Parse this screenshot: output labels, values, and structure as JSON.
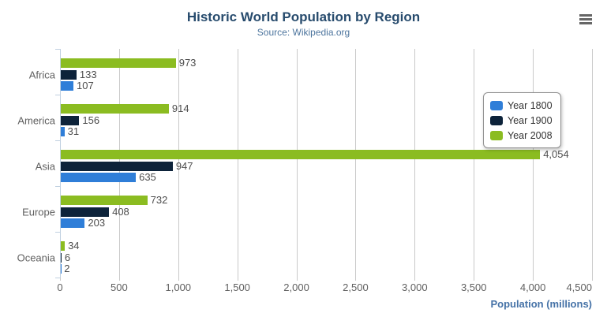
{
  "chart_data": {
    "type": "bar",
    "orientation": "horizontal",
    "title": "Historic World Population by Region",
    "subtitle": "Source: Wikipedia.org",
    "categories": [
      "Africa",
      "America",
      "Asia",
      "Europe",
      "Oceania"
    ],
    "series": [
      {
        "name": "Year 1800",
        "color": "#2f7ed8",
        "values": [
          107,
          31,
          635,
          203,
          2
        ],
        "value_labels": [
          "107",
          "31",
          "635",
          "203",
          "2"
        ]
      },
      {
        "name": "Year 1900",
        "color": "#0d233a",
        "values": [
          133,
          156,
          947,
          408,
          6
        ],
        "value_labels": [
          "133",
          "156",
          "947",
          "408",
          "6"
        ]
      },
      {
        "name": "Year 2008",
        "color": "#8bbc21",
        "values": [
          973,
          914,
          4054,
          732,
          34
        ],
        "value_labels": [
          "973",
          "914",
          "4,054",
          "732",
          "34"
        ]
      }
    ],
    "bar_display_order_top_to_bottom": [
      "Year 2008",
      "Year 1900",
      "Year 1800"
    ],
    "xlabel": "Population (millions)",
    "xlim": [
      0,
      4500
    ],
    "ticks": {
      "values": [
        0,
        500,
        1000,
        1500,
        2000,
        2500,
        3000,
        3500,
        4000,
        4500
      ],
      "labels": [
        "0",
        "500",
        "1,000",
        "1,500",
        "2,000",
        "2,500",
        "3,000",
        "3,500",
        "4,000",
        "4,500"
      ]
    },
    "grid": true,
    "legend_position": "right-top"
  },
  "colors": {
    "title": "#274b6d",
    "subtitle": "#4d759e",
    "axis_title": "#4572a7",
    "axis_labels": "#606060",
    "data_labels": "#4d4d4d",
    "gridline": "#c9c9c9",
    "category_axis_line": "#c0d0e0",
    "legend_border": "#909090",
    "menu_icon": "#666666",
    "background": "#ffffff"
  },
  "menu": {
    "tooltip": "Chart context menu"
  }
}
